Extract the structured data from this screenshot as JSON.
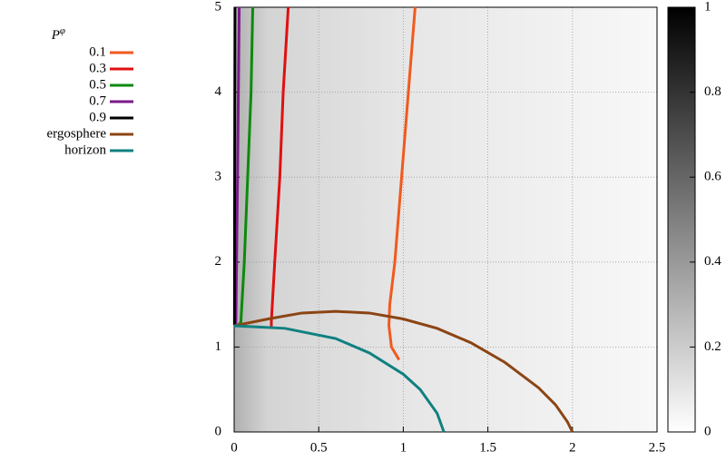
{
  "chart_data": {
    "type": "line",
    "legend_title": {
      "base": "P",
      "sup": "φ"
    },
    "legend": "top-left-outside",
    "grid": true,
    "xlim": [
      0,
      2.5
    ],
    "xticks": [
      0,
      0.5,
      1,
      1.5,
      2,
      2.5
    ],
    "ylim": [
      0,
      5
    ],
    "yticks": [
      0,
      1,
      2,
      3,
      4,
      5
    ],
    "zlim": [
      0,
      1
    ],
    "zticks": [
      0,
      0.2,
      0.4,
      0.6,
      0.8,
      1
    ],
    "series": [
      {
        "name": "0.1",
        "color": "#f05a1e",
        "x": [
          1.07,
          1.03,
          0.99,
          0.95,
          0.92,
          0.915,
          0.93,
          0.975
        ],
        "values": [
          5,
          4,
          3,
          2,
          1.5,
          1.25,
          1.0,
          0.85
        ]
      },
      {
        "name": "0.3",
        "color": "#e01010",
        "x": [
          0.32,
          0.29,
          0.27,
          0.24,
          0.22,
          0.22
        ],
        "values": [
          5,
          4,
          3,
          2,
          1.3,
          1.24
        ]
      },
      {
        "name": "0.5",
        "color": "#0c8a0c",
        "x": [
          0.11,
          0.1,
          0.08,
          0.06,
          0.04,
          0.03
        ],
        "values": [
          5,
          4,
          3,
          2,
          1.3,
          1.26
        ]
      },
      {
        "name": "0.7",
        "color": "#7a1a8a",
        "x": [
          0.03,
          0.02,
          0.01
        ],
        "values": [
          5,
          3,
          1.27
        ]
      },
      {
        "name": "0.9",
        "color": "#000000",
        "x": [
          0.005,
          0.003,
          0.002
        ],
        "values": [
          5,
          3,
          1.26
        ]
      },
      {
        "name": "ergosphere",
        "color": "#8b4513",
        "x": [
          0,
          0.2,
          0.4,
          0.6,
          0.8,
          1.0,
          1.2,
          1.4,
          1.6,
          1.8,
          1.9,
          1.97,
          2.0
        ],
        "values": [
          1.25,
          1.33,
          1.4,
          1.42,
          1.4,
          1.33,
          1.22,
          1.05,
          0.82,
          0.52,
          0.32,
          0.12,
          0
        ]
      },
      {
        "name": "horizon",
        "color": "#108080",
        "x": [
          0,
          0.3,
          0.6,
          0.8,
          1.0,
          1.1,
          1.2,
          1.24
        ],
        "values": [
          1.25,
          1.22,
          1.1,
          0.93,
          0.68,
          0.5,
          0.22,
          0
        ]
      }
    ]
  }
}
